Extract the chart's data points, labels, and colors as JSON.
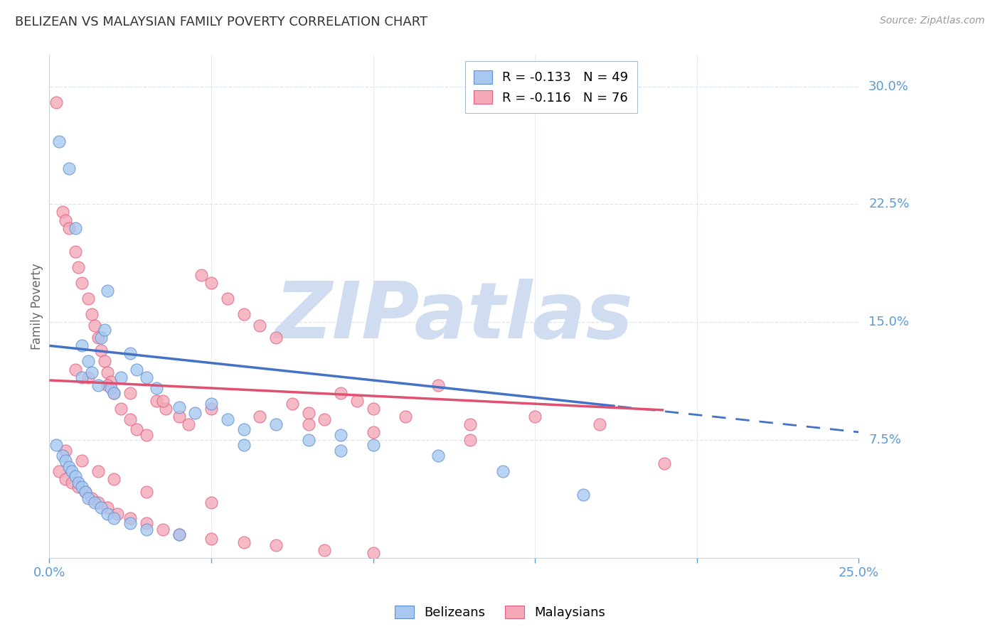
{
  "title": "BELIZEAN VS MALAYSIAN FAMILY POVERTY CORRELATION CHART",
  "source": "Source: ZipAtlas.com",
  "ylabel": "Family Poverty",
  "xlim": [
    0.0,
    0.25
  ],
  "ylim": [
    0.0,
    0.32
  ],
  "xtick_positions": [
    0.0,
    0.05,
    0.1,
    0.15,
    0.2,
    0.25
  ],
  "xtick_labels": [
    "0.0%",
    "",
    "",
    "",
    "",
    "25.0%"
  ],
  "yticks_right": [
    0.075,
    0.15,
    0.225,
    0.3
  ],
  "ytick_labels_right": [
    "7.5%",
    "15.0%",
    "22.5%",
    "30.0%"
  ],
  "belizean_color": "#A8C8F0",
  "malaysian_color": "#F4A8B8",
  "belizean_edge_color": "#6090D0",
  "malaysian_edge_color": "#E06080",
  "belizean_line_color": "#4472C4",
  "malaysian_line_color": "#E05070",
  "watermark": "ZIPatlas",
  "watermark_color": "#D0DCF0",
  "background_color": "#FFFFFF",
  "axis_color": "#5B9BD5",
  "grid_color": "#D8E4F0",
  "title_color": "#333333",
  "source_color": "#999999",
  "ylabel_color": "#666666",
  "legend_label_belizean": "R = -0.133   N = 49",
  "legend_label_malaysian": "R = -0.116   N = 76",
  "belizean_x": [
    0.003,
    0.006,
    0.008,
    0.01,
    0.01,
    0.012,
    0.013,
    0.015,
    0.016,
    0.017,
    0.018,
    0.019,
    0.02,
    0.022,
    0.025,
    0.027,
    0.03,
    0.033,
    0.04,
    0.045,
    0.05,
    0.055,
    0.06,
    0.07,
    0.08,
    0.09,
    0.1,
    0.12,
    0.14,
    0.165,
    0.002,
    0.004,
    0.005,
    0.006,
    0.007,
    0.008,
    0.009,
    0.01,
    0.011,
    0.012,
    0.014,
    0.016,
    0.018,
    0.02,
    0.025,
    0.03,
    0.04,
    0.06,
    0.09
  ],
  "belizean_y": [
    0.265,
    0.248,
    0.21,
    0.135,
    0.115,
    0.125,
    0.118,
    0.11,
    0.14,
    0.145,
    0.17,
    0.108,
    0.105,
    0.115,
    0.13,
    0.12,
    0.115,
    0.108,
    0.096,
    0.092,
    0.098,
    0.088,
    0.082,
    0.085,
    0.075,
    0.078,
    0.072,
    0.065,
    0.055,
    0.04,
    0.072,
    0.065,
    0.062,
    0.058,
    0.055,
    0.052,
    0.048,
    0.045,
    0.042,
    0.038,
    0.035,
    0.032,
    0.028,
    0.025,
    0.022,
    0.018,
    0.015,
    0.072,
    0.068
  ],
  "malaysian_x": [
    0.002,
    0.004,
    0.005,
    0.006,
    0.008,
    0.009,
    0.01,
    0.012,
    0.013,
    0.014,
    0.015,
    0.016,
    0.017,
    0.018,
    0.019,
    0.02,
    0.022,
    0.025,
    0.027,
    0.03,
    0.033,
    0.036,
    0.04,
    0.043,
    0.047,
    0.05,
    0.055,
    0.06,
    0.065,
    0.07,
    0.075,
    0.08,
    0.085,
    0.09,
    0.095,
    0.1,
    0.11,
    0.12,
    0.13,
    0.15,
    0.17,
    0.19,
    0.003,
    0.005,
    0.007,
    0.009,
    0.011,
    0.013,
    0.015,
    0.018,
    0.021,
    0.025,
    0.03,
    0.035,
    0.04,
    0.05,
    0.06,
    0.07,
    0.085,
    0.1,
    0.008,
    0.012,
    0.018,
    0.025,
    0.035,
    0.05,
    0.065,
    0.08,
    0.1,
    0.13,
    0.005,
    0.01,
    0.015,
    0.02,
    0.03,
    0.05
  ],
  "malaysian_y": [
    0.29,
    0.22,
    0.215,
    0.21,
    0.195,
    0.185,
    0.175,
    0.165,
    0.155,
    0.148,
    0.14,
    0.132,
    0.125,
    0.118,
    0.112,
    0.105,
    0.095,
    0.088,
    0.082,
    0.078,
    0.1,
    0.095,
    0.09,
    0.085,
    0.18,
    0.175,
    0.165,
    0.155,
    0.148,
    0.14,
    0.098,
    0.092,
    0.088,
    0.105,
    0.1,
    0.095,
    0.09,
    0.11,
    0.085,
    0.09,
    0.085,
    0.06,
    0.055,
    0.05,
    0.048,
    0.045,
    0.042,
    0.038,
    0.035,
    0.032,
    0.028,
    0.025,
    0.022,
    0.018,
    0.015,
    0.012,
    0.01,
    0.008,
    0.005,
    0.003,
    0.12,
    0.115,
    0.11,
    0.105,
    0.1,
    0.095,
    0.09,
    0.085,
    0.08,
    0.075,
    0.068,
    0.062,
    0.055,
    0.05,
    0.042,
    0.035
  ]
}
